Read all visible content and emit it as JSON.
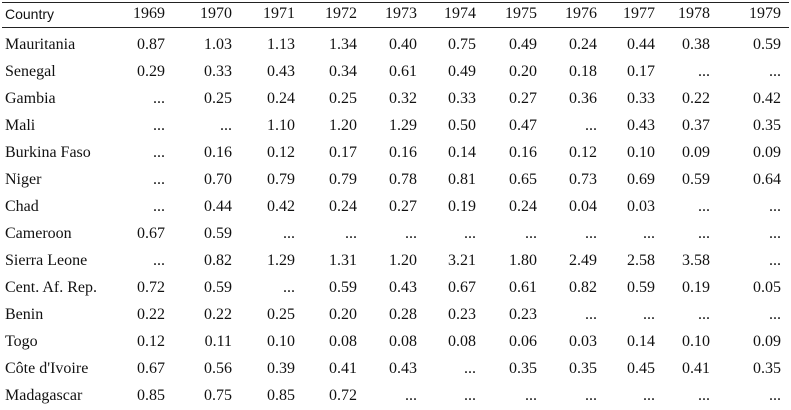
{
  "table": {
    "header": [
      "Country",
      "1969",
      "1970",
      "1971",
      "1972",
      "1973",
      "1974",
      "1975",
      "1976",
      "1977",
      "1978",
      "1979"
    ],
    "rows": [
      [
        "Mauritania",
        "0.87",
        "1.03",
        "1.13",
        "1.34",
        "0.40",
        "0.75",
        "0.49",
        "0.24",
        "0.44",
        "0.38",
        "0.59"
      ],
      [
        "Senegal",
        "0.29",
        "0.33",
        "0.43",
        "0.34",
        "0.61",
        "0.49",
        "0.20",
        "0.18",
        "0.17",
        "...",
        "..."
      ],
      [
        "Gambia",
        "...",
        "0.25",
        "0.24",
        "0.25",
        "0.32",
        "0.33",
        "0.27",
        "0.36",
        "0.33",
        "0.22",
        "0.42"
      ],
      [
        "Mali",
        "...",
        "...",
        "1.10",
        "1.20",
        "1.29",
        "0.50",
        "0.47",
        "...",
        "0.43",
        "0.37",
        "0.35"
      ],
      [
        "Burkina Faso",
        "...",
        "0.16",
        "0.12",
        "0.17",
        "0.16",
        "0.14",
        "0.16",
        "0.12",
        "0.10",
        "0.09",
        "0.09"
      ],
      [
        "Niger",
        "...",
        "0.70",
        "0.79",
        "0.79",
        "0.78",
        "0.81",
        "0.65",
        "0.73",
        "0.69",
        "0.59",
        "0.64"
      ],
      [
        "Chad",
        "...",
        "0.44",
        "0.42",
        "0.24",
        "0.27",
        "0.19",
        "0.24",
        "0.04",
        "0.03",
        "...",
        "..."
      ],
      [
        "Cameroon",
        "0.67",
        "0.59",
        "...",
        "...",
        "...",
        "...",
        "...",
        "...",
        "...",
        "...",
        "..."
      ],
      [
        "Sierra Leone",
        "...",
        "0.82",
        "1.29",
        "1.31",
        "1.20",
        "3.21",
        "1.80",
        "2.49",
        "2.58",
        "3.58",
        "..."
      ],
      [
        "Cent. Af. Rep.",
        "0.72",
        "0.59",
        "...",
        "0.59",
        "0.43",
        "0.67",
        "0.61",
        "0.82",
        "0.59",
        "0.19",
        "0.05"
      ],
      [
        "Benin",
        "0.22",
        "0.22",
        "0.25",
        "0.20",
        "0.28",
        "0.23",
        "0.23",
        "...",
        "...",
        "...",
        "..."
      ],
      [
        "Togo",
        "0.12",
        "0.11",
        "0.10",
        "0.08",
        "0.08",
        "0.08",
        "0.06",
        "0.03",
        "0.14",
        "0.10",
        "0.09"
      ],
      [
        "Côte d'Ivoire",
        "0.67",
        "0.56",
        "0.39",
        "0.41",
        "0.43",
        "...",
        "0.35",
        "0.35",
        "0.45",
        "0.41",
        "0.35"
      ],
      [
        "Madagascar",
        "0.85",
        "0.75",
        "0.85",
        "0.72",
        "...",
        "...",
        "...",
        "...",
        "...",
        "...",
        "..."
      ]
    ]
  }
}
